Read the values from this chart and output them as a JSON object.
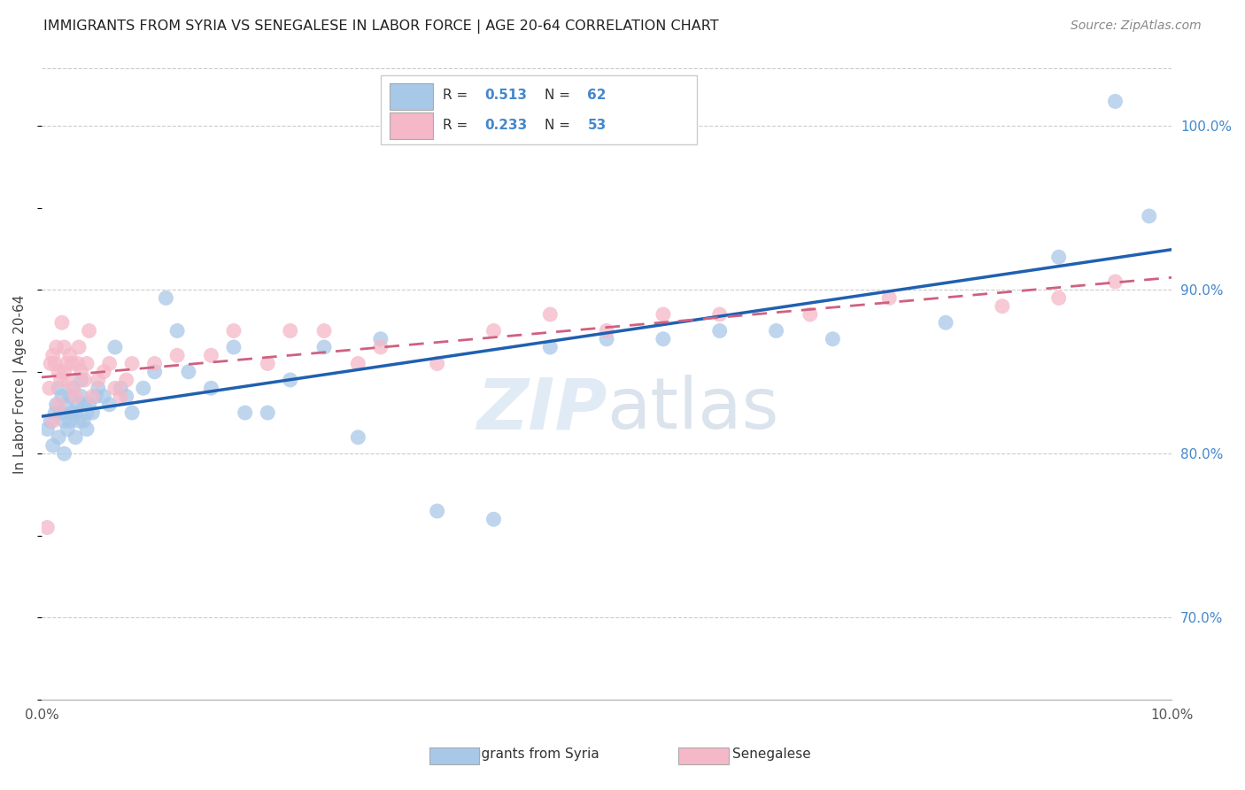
{
  "title": "IMMIGRANTS FROM SYRIA VS SENEGALESE IN LABOR FORCE | AGE 20-64 CORRELATION CHART",
  "source": "Source: ZipAtlas.com",
  "ylabel": "In Labor Force | Age 20-64",
  "xlim": [
    0.0,
    10.0
  ],
  "ylim": [
    65.0,
    103.5
  ],
  "yticks": [
    70.0,
    80.0,
    90.0,
    100.0
  ],
  "ytick_labels": [
    "70.0%",
    "80.0%",
    "90.0%",
    "100.0%"
  ],
  "xticks": [
    0.0,
    2.0,
    4.0,
    6.0,
    8.0,
    10.0
  ],
  "xtick_labels": [
    "0.0%",
    "",
    "",
    "",
    "",
    "10.0%"
  ],
  "syria_color": "#a8c8e8",
  "senegal_color": "#f5b8c8",
  "syria_line_color": "#2060b0",
  "senegal_line_color": "#d06080",
  "legend_R_syria": "R = ",
  "legend_R_syria_val": "0.513",
  "legend_N_syria": "N = ",
  "legend_N_syria_val": "62",
  "legend_R_senegal": "R = ",
  "legend_R_senegal_val": "0.233",
  "legend_N_senegal": "N = ",
  "legend_N_senegal_val": "53",
  "syria_x": [
    0.05,
    0.08,
    0.1,
    0.12,
    0.13,
    0.15,
    0.15,
    0.17,
    0.18,
    0.2,
    0.2,
    0.22,
    0.23,
    0.25,
    0.25,
    0.27,
    0.28,
    0.3,
    0.3,
    0.32,
    0.33,
    0.35,
    0.35,
    0.37,
    0.38,
    0.4,
    0.4,
    0.42,
    0.45,
    0.48,
    0.5,
    0.55,
    0.6,
    0.65,
    0.7,
    0.75,
    0.8,
    0.9,
    1.0,
    1.1,
    1.2,
    1.3,
    1.5,
    1.7,
    1.8,
    2.0,
    2.2,
    2.5,
    2.8,
    3.0,
    3.5,
    4.0,
    4.5,
    5.0,
    5.5,
    6.0,
    6.5,
    7.0,
    8.0,
    9.0,
    9.8,
    9.5
  ],
  "syria_y": [
    81.5,
    82.0,
    80.5,
    82.5,
    83.0,
    81.0,
    84.0,
    82.5,
    83.5,
    80.0,
    82.0,
    83.0,
    81.5,
    82.0,
    83.5,
    82.5,
    84.0,
    81.0,
    82.5,
    83.0,
    82.0,
    83.5,
    84.5,
    82.0,
    83.0,
    81.5,
    82.5,
    83.0,
    82.5,
    83.5,
    84.0,
    83.5,
    83.0,
    86.5,
    84.0,
    83.5,
    82.5,
    84.0,
    85.0,
    89.5,
    87.5,
    85.0,
    84.0,
    86.5,
    82.5,
    82.5,
    84.5,
    86.5,
    81.0,
    87.0,
    76.5,
    76.0,
    86.5,
    87.0,
    87.0,
    87.5,
    87.5,
    87.0,
    88.0,
    92.0,
    94.5,
    101.5
  ],
  "senegal_x": [
    0.05,
    0.07,
    0.08,
    0.1,
    0.1,
    0.12,
    0.13,
    0.15,
    0.15,
    0.17,
    0.18,
    0.2,
    0.2,
    0.22,
    0.23,
    0.25,
    0.27,
    0.28,
    0.3,
    0.32,
    0.33,
    0.35,
    0.38,
    0.4,
    0.42,
    0.45,
    0.5,
    0.55,
    0.6,
    0.65,
    0.7,
    0.75,
    0.8,
    1.0,
    1.2,
    1.5,
    1.7,
    2.0,
    2.2,
    2.5,
    2.8,
    3.0,
    3.5,
    4.0,
    4.5,
    5.0,
    5.5,
    6.0,
    6.8,
    7.5,
    8.5,
    9.0,
    9.5
  ],
  "senegal_y": [
    75.5,
    84.0,
    85.5,
    82.0,
    86.0,
    85.5,
    86.5,
    83.0,
    85.0,
    84.5,
    88.0,
    85.0,
    86.5,
    85.5,
    84.5,
    86.0,
    85.5,
    84.0,
    83.5,
    85.5,
    86.5,
    85.0,
    84.5,
    85.5,
    87.5,
    83.5,
    84.5,
    85.0,
    85.5,
    84.0,
    83.5,
    84.5,
    85.5,
    85.5,
    86.0,
    86.0,
    87.5,
    85.5,
    87.5,
    87.5,
    85.5,
    86.5,
    85.5,
    87.5,
    88.5,
    87.5,
    88.5,
    88.5,
    88.5,
    89.5,
    89.0,
    89.5,
    90.5
  ]
}
